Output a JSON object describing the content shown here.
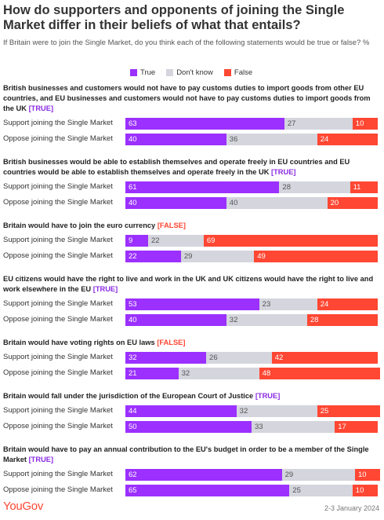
{
  "header": {
    "title": "How do supporters and opponents of joining the Single Market differ in their beliefs of what that entails?",
    "subtitle": "If Britain were to join the Single Market, do you think each of the following statements would be true or false? %"
  },
  "footer": {
    "brand": "YouGov",
    "date": "2-3 January 2024"
  },
  "chart_data": [
    {
      "type": "bar",
      "stacked": true,
      "orientation": "horizontal",
      "xlim": [
        0,
        100
      ],
      "title": "British businesses and customers would not have to pay customs duties to import goods from other EU countries, and EU businesses and customers would not have to pay customs duties to import goods from the UK",
      "tag": "[TRUE]",
      "tag_color": "#8a2be2",
      "categories": [
        "Support joining the Single Market",
        "Oppose joining the Single Market"
      ],
      "series": [
        {
          "name": "True",
          "color": "#9b30ff",
          "values": [
            63,
            40
          ]
        },
        {
          "name": "Don't know",
          "color": "#d4d5dd",
          "values": [
            27,
            36
          ]
        },
        {
          "name": "False",
          "color": "#ff4733",
          "values": [
            10,
            24
          ]
        }
      ]
    },
    {
      "type": "bar",
      "stacked": true,
      "orientation": "horizontal",
      "xlim": [
        0,
        100
      ],
      "title": "British businesses would be able to establish themselves and operate freely in EU countries and EU countries would be able to establish themselves and operate freely in the UK",
      "tag": "[TRUE]",
      "tag_color": "#8a2be2",
      "categories": [
        "Support joining the Single Market",
        "Oppose joining the Single Market"
      ],
      "series": [
        {
          "name": "True",
          "color": "#9b30ff",
          "values": [
            61,
            40
          ]
        },
        {
          "name": "Don't know",
          "color": "#d4d5dd",
          "values": [
            28,
            40
          ]
        },
        {
          "name": "False",
          "color": "#ff4733",
          "values": [
            11,
            20
          ]
        }
      ]
    },
    {
      "type": "bar",
      "stacked": true,
      "orientation": "horizontal",
      "xlim": [
        0,
        100
      ],
      "title": "Britain would have to join the euro currency",
      "tag": "[FALSE]",
      "tag_color": "#ff4733",
      "categories": [
        "Support joining the Single Market",
        "Oppose joining the Single Market"
      ],
      "series": [
        {
          "name": "True",
          "color": "#9b30ff",
          "values": [
            9,
            22
          ]
        },
        {
          "name": "Don't know",
          "color": "#d4d5dd",
          "values": [
            22,
            29
          ]
        },
        {
          "name": "False",
          "color": "#ff4733",
          "values": [
            69,
            49
          ]
        }
      ]
    },
    {
      "type": "bar",
      "stacked": true,
      "orientation": "horizontal",
      "xlim": [
        0,
        100
      ],
      "title": "EU citizens would have the right to live and work in the UK and UK citizens would have the right to live and work elsewhere in the EU",
      "tag": "[TRUE]",
      "tag_color": "#8a2be2",
      "categories": [
        "Support joining the Single Market",
        "Oppose joining the Single Market"
      ],
      "series": [
        {
          "name": "True",
          "color": "#9b30ff",
          "values": [
            53,
            40
          ]
        },
        {
          "name": "Don't know",
          "color": "#d4d5dd",
          "values": [
            23,
            32
          ]
        },
        {
          "name": "False",
          "color": "#ff4733",
          "values": [
            24,
            28
          ]
        }
      ]
    },
    {
      "type": "bar",
      "stacked": true,
      "orientation": "horizontal",
      "xlim": [
        0,
        100
      ],
      "title": "Britain would have voting rights on EU laws",
      "tag": "[FALSE]",
      "tag_color": "#ff4733",
      "categories": [
        "Support joining the Single Market",
        "Oppose joining the Single Market"
      ],
      "series": [
        {
          "name": "True",
          "color": "#9b30ff",
          "values": [
            32,
            21
          ]
        },
        {
          "name": "Don't know",
          "color": "#d4d5dd",
          "values": [
            26,
            32
          ]
        },
        {
          "name": "False",
          "color": "#ff4733",
          "values": [
            42,
            48
          ]
        }
      ]
    },
    {
      "type": "bar",
      "stacked": true,
      "orientation": "horizontal",
      "xlim": [
        0,
        100
      ],
      "title": "Britain would fall under the jurisdiction of the European Court of Justice",
      "tag": "[TRUE]",
      "tag_color": "#8a2be2",
      "categories": [
        "Support joining the Single Market",
        "Oppose joining the Single Market"
      ],
      "series": [
        {
          "name": "True",
          "color": "#9b30ff",
          "values": [
            44,
            50
          ]
        },
        {
          "name": "Don't know",
          "color": "#d4d5dd",
          "values": [
            32,
            33
          ]
        },
        {
          "name": "False",
          "color": "#ff4733",
          "values": [
            25,
            17
          ]
        }
      ]
    },
    {
      "type": "bar",
      "stacked": true,
      "orientation": "horizontal",
      "xlim": [
        0,
        100
      ],
      "title": "Britain would have to pay an annual contribution to the EU's budget in order to be a member of the Single Market",
      "tag": "[TRUE]",
      "tag_color": "#8a2be2",
      "categories": [
        "Support joining the Single Market",
        "Oppose joining the Single Market"
      ],
      "series": [
        {
          "name": "True",
          "color": "#9b30ff",
          "values": [
            62,
            65
          ]
        },
        {
          "name": "Don't know",
          "color": "#d4d5dd",
          "values": [
            29,
            25
          ]
        },
        {
          "name": "False",
          "color": "#ff4733",
          "values": [
            10,
            10
          ]
        }
      ]
    }
  ]
}
